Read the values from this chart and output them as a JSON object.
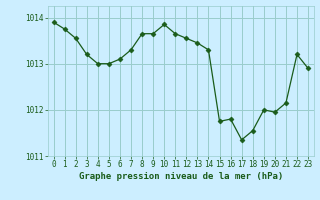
{
  "x": [
    0,
    1,
    2,
    3,
    4,
    5,
    6,
    7,
    8,
    9,
    10,
    11,
    12,
    13,
    14,
    15,
    16,
    17,
    18,
    19,
    20,
    21,
    22,
    23
  ],
  "y": [
    1013.9,
    1013.75,
    1013.55,
    1013.2,
    1013.0,
    1013.0,
    1013.1,
    1013.3,
    1013.65,
    1013.65,
    1013.85,
    1013.65,
    1013.55,
    1013.45,
    1013.3,
    1011.75,
    1011.8,
    1011.35,
    1011.55,
    1012.0,
    1011.95,
    1012.15,
    1013.2,
    1012.9
  ],
  "line_color": "#1a5c1a",
  "marker": "D",
  "marker_size": 2.5,
  "bg_color": "#cceeff",
  "grid_color": "#99cccc",
  "text_color": "#1a5c1a",
  "xlabel": "Graphe pression niveau de la mer (hPa)",
  "xlim": [
    -0.5,
    23.5
  ],
  "ylim": [
    1011.0,
    1014.25
  ],
  "yticks": [
    1011,
    1012,
    1013,
    1014
  ],
  "xticks": [
    0,
    1,
    2,
    3,
    4,
    5,
    6,
    7,
    8,
    9,
    10,
    11,
    12,
    13,
    14,
    15,
    16,
    17,
    18,
    19,
    20,
    21,
    22,
    23
  ],
  "tick_fontsize": 5.5,
  "label_fontsize": 6.5
}
